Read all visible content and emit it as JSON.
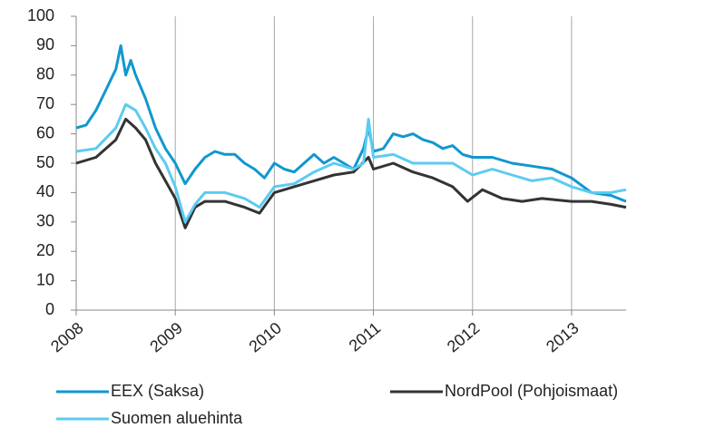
{
  "chart_data": {
    "type": "line",
    "xlim": [
      2008,
      2013.55
    ],
    "xticks": [
      2008,
      2009,
      2010,
      2011,
      2012,
      2013
    ],
    "ylim": [
      0,
      100
    ],
    "yticks": [
      0,
      10,
      20,
      30,
      40,
      50,
      60,
      70,
      80,
      90,
      100
    ],
    "grid": true,
    "series": [
      {
        "name": "EEX (Saksa)",
        "color": "#1197cf",
        "x": [
          2008.0,
          2008.1,
          2008.2,
          2008.3,
          2008.4,
          2008.45,
          2008.5,
          2008.55,
          2008.6,
          2008.7,
          2008.8,
          2008.9,
          2009.0,
          2009.1,
          2009.2,
          2009.3,
          2009.4,
          2009.5,
          2009.6,
          2009.7,
          2009.8,
          2009.9,
          2010.0,
          2010.1,
          2010.2,
          2010.3,
          2010.4,
          2010.5,
          2010.6,
          2010.7,
          2010.8,
          2010.9,
          2010.95,
          2011.0,
          2011.1,
          2011.2,
          2011.3,
          2011.4,
          2011.5,
          2011.6,
          2011.7,
          2011.8,
          2011.9,
          2012.0,
          2012.2,
          2012.4,
          2012.6,
          2012.8,
          2013.0,
          2013.2,
          2013.4,
          2013.55
        ],
        "values": [
          62,
          63,
          68,
          75,
          82,
          90,
          80,
          85,
          80,
          72,
          62,
          55,
          50,
          43,
          48,
          52,
          54,
          53,
          53,
          50,
          48,
          45,
          50,
          48,
          47,
          50,
          53,
          50,
          52,
          50,
          48,
          55,
          62,
          54,
          55,
          60,
          59,
          60,
          58,
          57,
          55,
          56,
          53,
          52,
          52,
          50,
          49,
          48,
          45,
          40,
          39,
          37
        ]
      },
      {
        "name": "NordPool (Pohjoismaat)",
        "color": "#333333",
        "x": [
          2008.0,
          2008.2,
          2008.4,
          2008.5,
          2008.6,
          2008.7,
          2008.8,
          2008.9,
          2009.0,
          2009.1,
          2009.2,
          2009.3,
          2009.5,
          2009.7,
          2009.85,
          2010.0,
          2010.2,
          2010.4,
          2010.6,
          2010.8,
          2010.95,
          2011.0,
          2011.2,
          2011.4,
          2011.6,
          2011.8,
          2011.95,
          2012.1,
          2012.3,
          2012.5,
          2012.7,
          2013.0,
          2013.2,
          2013.4,
          2013.55
        ],
        "values": [
          50,
          52,
          58,
          65,
          62,
          58,
          50,
          44,
          38,
          28,
          35,
          37,
          37,
          35,
          33,
          40,
          42,
          44,
          46,
          47,
          52,
          48,
          50,
          47,
          45,
          42,
          37,
          41,
          38,
          37,
          38,
          37,
          37,
          36,
          35
        ]
      },
      {
        "name": "Suomen aluehinta",
        "color": "#5ccbf2",
        "x": [
          2008.0,
          2008.2,
          2008.4,
          2008.5,
          2008.6,
          2008.7,
          2008.8,
          2008.9,
          2009.0,
          2009.1,
          2009.2,
          2009.3,
          2009.5,
          2009.7,
          2009.85,
          2010.0,
          2010.2,
          2010.4,
          2010.6,
          2010.8,
          2010.9,
          2010.95,
          2011.0,
          2011.2,
          2011.4,
          2011.6,
          2011.8,
          2012.0,
          2012.2,
          2012.4,
          2012.6,
          2012.8,
          2013.0,
          2013.2,
          2013.4,
          2013.55
        ],
        "values": [
          54,
          55,
          62,
          70,
          68,
          62,
          55,
          50,
          42,
          30,
          36,
          40,
          40,
          38,
          35,
          42,
          43,
          47,
          50,
          48,
          50,
          65,
          52,
          53,
          50,
          50,
          50,
          46,
          48,
          46,
          44,
          45,
          42,
          40,
          40,
          41
        ]
      }
    ]
  }
}
